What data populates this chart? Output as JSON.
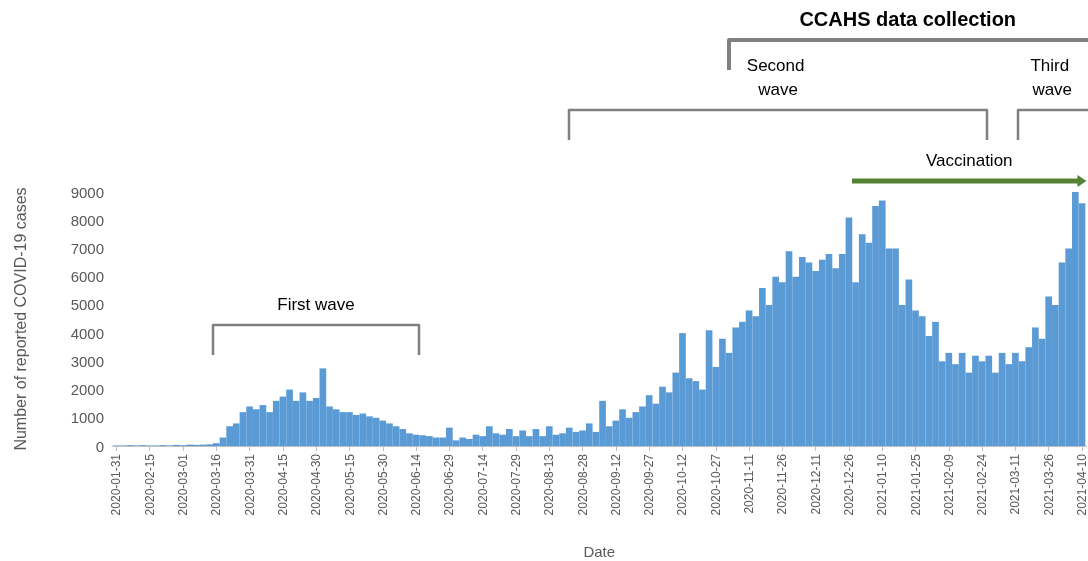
{
  "chart_data": {
    "type": "bar",
    "xlabel": "Date",
    "ylabel": "Number of reported COVID-19 cases",
    "x": [
      "2020-01-31",
      "2020-02-03",
      "2020-02-06",
      "2020-02-09",
      "2020-02-12",
      "2020-02-15",
      "2020-02-18",
      "2020-02-21",
      "2020-02-24",
      "2020-02-27",
      "2020-03-01",
      "2020-03-04",
      "2020-03-07",
      "2020-03-10",
      "2020-03-13",
      "2020-03-16",
      "2020-03-19",
      "2020-03-22",
      "2020-03-25",
      "2020-03-28",
      "2020-03-31",
      "2020-04-03",
      "2020-04-06",
      "2020-04-09",
      "2020-04-12",
      "2020-04-15",
      "2020-04-18",
      "2020-04-21",
      "2020-04-24",
      "2020-04-27",
      "2020-04-30",
      "2020-05-03",
      "2020-05-06",
      "2020-05-09",
      "2020-05-12",
      "2020-05-15",
      "2020-05-18",
      "2020-05-21",
      "2020-05-24",
      "2020-05-27",
      "2020-05-30",
      "2020-06-02",
      "2020-06-05",
      "2020-06-08",
      "2020-06-11",
      "2020-06-14",
      "2020-06-17",
      "2020-06-20",
      "2020-06-23",
      "2020-06-26",
      "2020-06-29",
      "2020-07-02",
      "2020-07-05",
      "2020-07-08",
      "2020-07-11",
      "2020-07-14",
      "2020-07-17",
      "2020-07-20",
      "2020-07-23",
      "2020-07-26",
      "2020-07-29",
      "2020-08-01",
      "2020-08-04",
      "2020-08-07",
      "2020-08-10",
      "2020-08-13",
      "2020-08-16",
      "2020-08-19",
      "2020-08-22",
      "2020-08-25",
      "2020-08-28",
      "2020-08-31",
      "2020-09-03",
      "2020-09-06",
      "2020-09-09",
      "2020-09-12",
      "2020-09-15",
      "2020-09-18",
      "2020-09-21",
      "2020-09-24",
      "2020-09-27",
      "2020-09-30",
      "2020-10-03",
      "2020-10-06",
      "2020-10-09",
      "2020-10-12",
      "2020-10-15",
      "2020-10-18",
      "2020-10-21",
      "2020-10-24",
      "2020-10-27",
      "2020-10-30",
      "2020-11-02",
      "2020-11-05",
      "2020-11-08",
      "2020-11-11",
      "2020-11-14",
      "2020-11-17",
      "2020-11-20",
      "2020-11-23",
      "2020-11-26",
      "2020-11-29",
      "2020-12-02",
      "2020-12-05",
      "2020-12-08",
      "2020-12-11",
      "2020-12-14",
      "2020-12-17",
      "2020-12-20",
      "2020-12-23",
      "2020-12-26",
      "2020-12-29",
      "2021-01-01",
      "2021-01-04",
      "2021-01-07",
      "2021-01-10",
      "2021-01-13",
      "2021-01-16",
      "2021-01-19",
      "2021-01-22",
      "2021-01-25",
      "2021-01-28",
      "2021-01-31",
      "2021-02-03",
      "2021-02-06",
      "2021-02-09",
      "2021-02-12",
      "2021-02-15",
      "2021-02-18",
      "2021-02-21",
      "2021-02-24",
      "2021-02-27",
      "2021-03-02",
      "2021-03-05",
      "2021-03-08",
      "2021-03-11",
      "2021-03-14",
      "2021-03-17",
      "2021-03-20",
      "2021-03-23",
      "2021-03-26",
      "2021-03-29",
      "2021-04-01",
      "2021-04-04",
      "2021-04-07",
      "2021-04-10"
    ],
    "values": [
      20,
      20,
      30,
      20,
      30,
      20,
      20,
      30,
      20,
      40,
      30,
      50,
      40,
      50,
      60,
      100,
      300,
      700,
      800,
      1200,
      1400,
      1300,
      1450,
      1200,
      1600,
      1750,
      2000,
      1600,
      1900,
      1600,
      1700,
      2750,
      1400,
      1300,
      1200,
      1200,
      1100,
      1150,
      1050,
      1000,
      900,
      800,
      700,
      600,
      450,
      400,
      380,
      350,
      300,
      300,
      650,
      200,
      300,
      250,
      400,
      350,
      700,
      450,
      400,
      600,
      350,
      550,
      350,
      600,
      350,
      700,
      400,
      450,
      650,
      500,
      550,
      800,
      500,
      1600,
      700,
      900,
      1300,
      1000,
      1200,
      1400,
      1800,
      1500,
      2100,
      1900,
      2600,
      4000,
      2400,
      2300,
      2000,
      4100,
      2800,
      3800,
      3300,
      4200,
      4400,
      4800,
      4600,
      5600,
      5000,
      6000,
      5800,
      6900,
      6000,
      6700,
      6500,
      6200,
      6600,
      6800,
      6300,
      6800,
      8100,
      5800,
      7500,
      7200,
      8500,
      8700,
      7000,
      7000,
      5000,
      5900,
      4800,
      4600,
      3900,
      4400,
      3000,
      3300,
      2900,
      3300,
      2600,
      3200,
      3000,
      3200,
      2600,
      3300,
      2900,
      3300,
      3000,
      3500,
      4200,
      3800,
      5300,
      5000,
      6500,
      7000,
      9000,
      8600
    ],
    "color": "#5b9bd5",
    "xlim": [
      "2020-01-29",
      "2021-04-12"
    ],
    "xticks": [
      "2020-01-31",
      "2020-02-15",
      "2020-03-01",
      "2020-03-16",
      "2020-03-31",
      "2020-04-15",
      "2020-04-30",
      "2020-05-15",
      "2020-05-30",
      "2020-06-14",
      "2020-06-29",
      "2020-07-14",
      "2020-07-29",
      "2020-08-13",
      "2020-08-28",
      "2020-09-12",
      "2020-09-27",
      "2020-10-12",
      "2020-10-27",
      "2020-11-11",
      "2020-11-26",
      "2020-12-11",
      "2020-12-26",
      "2021-01-10",
      "2021-01-25",
      "2021-02-09",
      "2021-02-24",
      "2021-03-11",
      "2021-03-26",
      "2021-04-10"
    ],
    "ylim": [
      0,
      9000
    ],
    "yticks": [
      0,
      1000,
      2000,
      3000,
      4000,
      5000,
      6000,
      7000,
      8000,
      9000
    ],
    "annotations": [
      "First wave",
      "Second wave",
      "Third wave",
      "Vaccination",
      "CCAHS data collection"
    ]
  }
}
